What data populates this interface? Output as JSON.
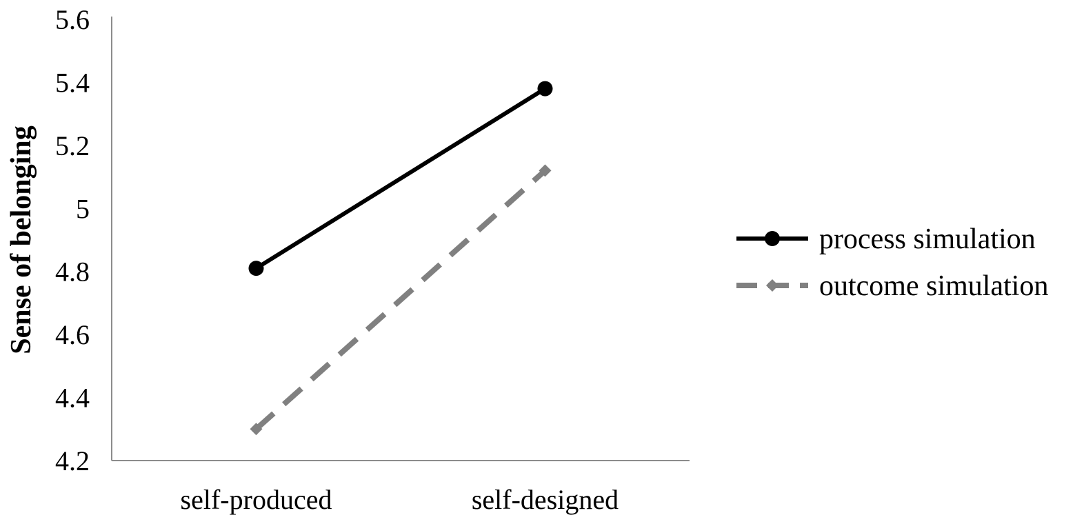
{
  "chart_data": {
    "type": "line",
    "title": "",
    "xlabel": "",
    "ylabel": "Sense of belonging",
    "categories": [
      "self-produced",
      "self-designed"
    ],
    "ylim": [
      4.2,
      5.6
    ],
    "yticks": [
      "4.2",
      "4.4",
      "4.6",
      "4.8",
      "5",
      "5.2",
      "5.4",
      "5.6"
    ],
    "grid": false,
    "legend_position": "right",
    "series": [
      {
        "name": "process simulation",
        "values": [
          4.81,
          5.38
        ],
        "color": "#000000",
        "dash": "solid",
        "marker": "circle"
      },
      {
        "name": "outcome simulation",
        "values": [
          4.3,
          5.12
        ],
        "color": "#808080",
        "dash": "dashed",
        "marker": "diamond"
      }
    ]
  }
}
